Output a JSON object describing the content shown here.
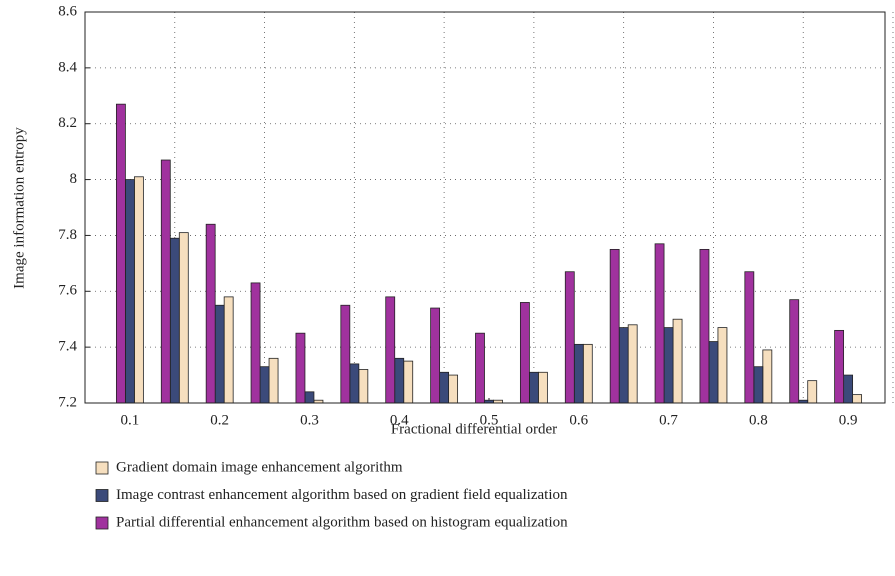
{
  "chart_data": {
    "type": "bar",
    "x_label": "Fractional differential order",
    "y_label": "Image information entropy",
    "x": [
      0.1,
      0.15,
      0.2,
      0.25,
      0.3,
      0.35,
      0.4,
      0.45,
      0.5,
      0.55,
      0.6,
      0.65,
      0.7,
      0.75,
      0.8,
      0.85,
      0.9
    ],
    "series": [
      {
        "name": "Gradient domain image enhancement algorithm",
        "color": "#f6dfbf",
        "values": [
          8.01,
          7.81,
          7.58,
          7.36,
          7.21,
          7.32,
          7.35,
          7.3,
          7.21,
          7.31,
          7.41,
          7.48,
          7.5,
          7.47,
          7.39,
          7.28,
          7.23
        ]
      },
      {
        "name": "Image contrast enhancement algorithm based on gradient field equalization",
        "color": "#3b4a7a",
        "values": [
          8.0,
          7.79,
          7.55,
          7.33,
          7.24,
          7.34,
          7.36,
          7.31,
          7.21,
          7.31,
          7.41,
          7.47,
          7.47,
          7.42,
          7.33,
          7.21,
          7.3
        ]
      },
      {
        "name": "Partial differential enhancement algorithm based on histogram equalization",
        "color": "#a0329e",
        "values": [
          8.27,
          8.07,
          7.84,
          7.63,
          7.45,
          7.55,
          7.58,
          7.54,
          7.45,
          7.56,
          7.67,
          7.75,
          7.77,
          7.75,
          7.67,
          7.57,
          7.46
        ]
      }
    ],
    "xlim": [
      0.05,
      0.95
    ],
    "xticks": [
      0.1,
      0.2,
      0.3,
      0.4,
      0.5,
      0.6,
      0.7,
      0.8,
      0.9
    ],
    "ylim": [
      7.2,
      8.6
    ],
    "yticks": [
      7.2,
      7.4,
      7.6,
      7.8,
      8,
      8.2,
      8.4,
      8.6
    ],
    "grid": true
  }
}
